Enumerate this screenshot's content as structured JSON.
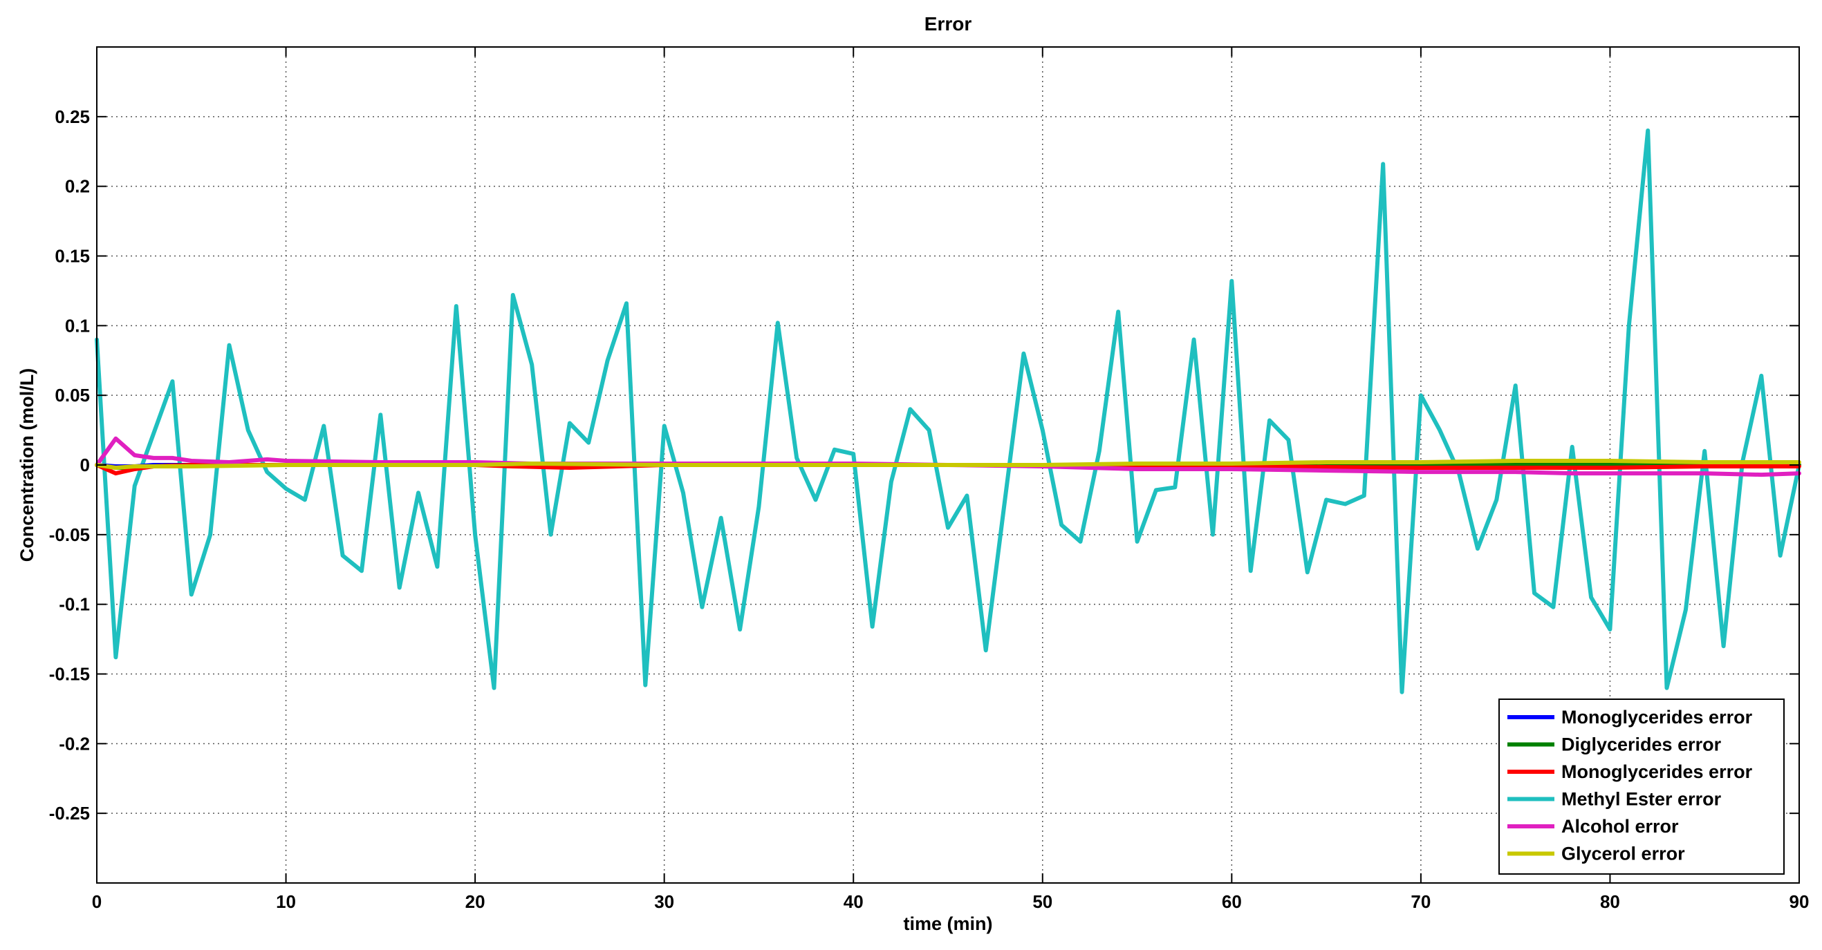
{
  "chart_data": {
    "type": "line",
    "title": "Error",
    "xlabel": "time (min)",
    "ylabel": "Concentration  (mol/L)",
    "xlim": [
      0,
      90
    ],
    "ylim": [
      -0.3,
      0.3
    ],
    "grid": true,
    "legend_position": "bottom-right",
    "x_ticks": [
      0,
      10,
      20,
      30,
      40,
      50,
      60,
      70,
      80,
      90
    ],
    "x_tick_labels": [
      "0",
      "10",
      "20",
      "30",
      "40",
      "50",
      "60",
      "70",
      "80",
      "90"
    ],
    "y_ticks": [
      0.25,
      0.2,
      0.15,
      0.1,
      0.05,
      0,
      -0.05,
      -0.1,
      -0.15,
      -0.2,
      -0.25
    ],
    "y_tick_labels": [
      "0.25",
      "0.2",
      "0.15",
      "0.1",
      "0.05",
      "0",
      "-0.05",
      "-0.1",
      "-0.15",
      "-0.2",
      "-0.25"
    ],
    "series": [
      {
        "name": "Monoglycerides error",
        "color": "#0000ff",
        "x": [
          0,
          1,
          2,
          3,
          5,
          10,
          20,
          30,
          40,
          50,
          60,
          70,
          80,
          90
        ],
        "y": [
          0,
          -0.001,
          -0.001,
          0,
          0,
          0,
          0,
          0,
          0,
          0,
          0,
          0,
          0,
          0
        ]
      },
      {
        "name": "Diglycerides error",
        "color": "#008000",
        "x": [
          0,
          1,
          2,
          3,
          5,
          10,
          20,
          30,
          40,
          50,
          60,
          70,
          80,
          90
        ],
        "y": [
          0,
          -0.002,
          -0.002,
          -0.001,
          0,
          0,
          0,
          0,
          0,
          0,
          0,
          0,
          0,
          0
        ]
      },
      {
        "name": "Monoglycerides error",
        "color": "#ff0000",
        "x": [
          0,
          1,
          2,
          3,
          5,
          10,
          20,
          22,
          25,
          30,
          40,
          50,
          60,
          70,
          80,
          85,
          90
        ],
        "y": [
          0,
          -0.006,
          -0.003,
          -0.001,
          0,
          0,
          0,
          -0.001,
          -0.002,
          0,
          0,
          0,
          -0.001,
          -0.002,
          -0.002,
          -0.001,
          -0.001
        ]
      },
      {
        "name": "Methyl Ester error",
        "color": "#1fbfbf",
        "x": [
          0,
          1,
          2,
          4,
          5,
          6,
          7,
          8,
          9,
          10,
          11,
          12,
          13,
          14,
          15,
          16,
          17,
          18,
          19,
          20,
          21,
          22,
          23,
          24,
          25,
          26,
          27,
          28,
          29,
          30,
          31,
          32,
          33,
          34,
          35,
          36,
          37,
          38,
          39,
          40,
          41,
          42,
          43,
          44,
          45,
          46,
          47,
          48,
          49,
          50,
          51,
          52,
          53,
          54,
          55,
          56,
          57,
          58,
          59,
          60,
          61,
          62,
          63,
          64,
          65,
          66,
          67,
          68,
          69,
          70,
          71,
          72,
          73,
          74,
          75,
          76,
          77,
          78,
          79,
          80,
          81,
          82,
          83,
          84,
          85,
          86,
          87,
          88,
          89,
          90
        ],
        "y": [
          0.09,
          -0.138,
          -0.015,
          0.06,
          -0.093,
          -0.05,
          0.086,
          0.025,
          -0.005,
          -0.017,
          -0.025,
          0.028,
          -0.065,
          -0.076,
          0.036,
          -0.088,
          -0.02,
          -0.073,
          0.114,
          -0.05,
          -0.16,
          0.122,
          0.072,
          -0.05,
          0.03,
          0.016,
          0.075,
          0.116,
          -0.158,
          0.028,
          -0.02,
          -0.102,
          -0.038,
          -0.118,
          -0.03,
          0.102,
          0.005,
          -0.025,
          0.011,
          0.008,
          -0.116,
          -0.012,
          0.04,
          0.025,
          -0.045,
          -0.022,
          -0.133,
          -0.026,
          0.08,
          0.025,
          -0.043,
          -0.055,
          0.01,
          0.11,
          -0.055,
          -0.018,
          -0.016,
          0.09,
          -0.05,
          0.132,
          -0.076,
          0.032,
          0.018,
          -0.077,
          -0.025,
          -0.028,
          -0.022,
          0.216,
          -0.163,
          0.05,
          0.025,
          -0.005,
          -0.06,
          -0.025,
          0.057,
          -0.092,
          -0.102,
          0.013,
          -0.095,
          -0.118,
          0.1,
          0.24,
          -0.16,
          -0.104,
          0.01,
          -0.13,
          0.002,
          0.064,
          -0.065,
          0
        ]
      },
      {
        "name": "Alcohol error",
        "color": "#e020c0",
        "x": [
          0,
          1,
          2,
          3,
          4,
          5,
          7,
          9,
          10,
          15,
          20,
          23,
          25,
          30,
          35,
          40,
          45,
          50,
          55,
          60,
          65,
          70,
          75,
          78,
          80,
          85,
          88,
          90
        ],
        "y": [
          0,
          0.019,
          0.007,
          0.005,
          0.005,
          0.003,
          0.002,
          0.004,
          0.003,
          0.002,
          0.002,
          0.001,
          0.001,
          0.001,
          0.001,
          0.001,
          0,
          -0.001,
          -0.003,
          -0.003,
          -0.004,
          -0.005,
          -0.005,
          -0.006,
          -0.006,
          -0.006,
          -0.007,
          -0.006
        ]
      },
      {
        "name": "Glycerol error",
        "color": "#c8c800",
        "x": [
          0,
          1,
          2,
          5,
          10,
          20,
          23,
          30,
          40,
          50,
          55,
          60,
          65,
          70,
          75,
          80,
          85,
          90
        ],
        "y": [
          0,
          -0.002,
          -0.001,
          -0.001,
          0,
          0,
          0.001,
          0,
          0,
          0,
          0.001,
          0.001,
          0.002,
          0.002,
          0.003,
          0.003,
          0.002,
          0.002
        ]
      }
    ]
  }
}
